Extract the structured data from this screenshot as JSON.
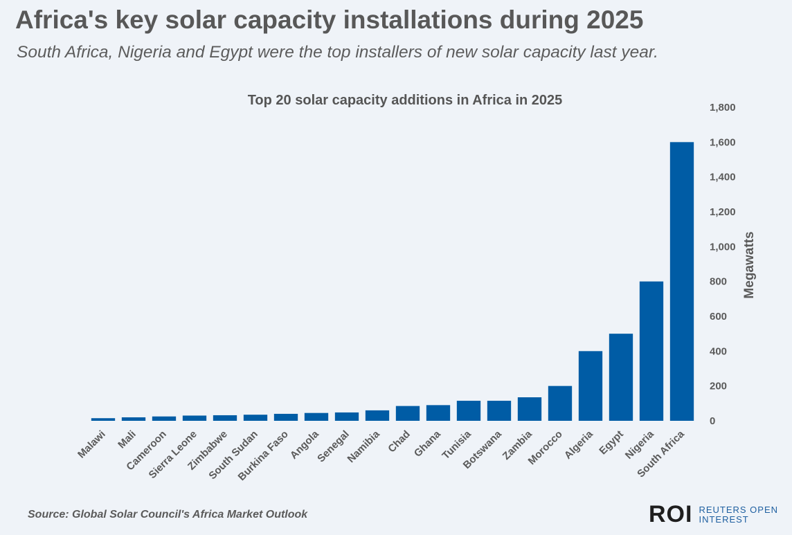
{
  "header": {
    "title": "Africa's key solar capacity installations during 2025",
    "subtitle": "South Africa, Nigeria and Egypt were the top installers of new solar capacity last year."
  },
  "footer": {
    "source": "Source:  Global Solar Council's Africa Market Outlook",
    "brand_mark": "ROI",
    "brand_name": "REUTERS OPEN INTEREST"
  },
  "chart_data": {
    "type": "bar",
    "title": "Top 20 solar capacity additions in Africa in 2025",
    "xlabel": "",
    "ylabel": "Megawatts",
    "ylim": [
      0,
      1800
    ],
    "yticks": [
      0,
      200,
      400,
      600,
      800,
      1000,
      1200,
      1400,
      1600,
      1800
    ],
    "ytick_labels": [
      "0",
      "200",
      "400",
      "600",
      "800",
      "1,000",
      "1,200",
      "1,400",
      "1,600",
      "1,800"
    ],
    "y_axis_position": "right",
    "grid": false,
    "legend": "none",
    "bar_color": "#005ca5",
    "categories": [
      "Malawi",
      "Mali",
      "Cameroon",
      "Sierra Leone",
      "Zimbabwe",
      "South Sudan",
      "Burkina Faso",
      "Angola",
      "Senegal",
      "Namibia",
      "Chad",
      "Ghana",
      "Tunisia",
      "Botswana",
      "Zambia",
      "Morocco",
      "Algeria",
      "Egypt",
      "Nigeria",
      "South Africa"
    ],
    "values": [
      15,
      20,
      25,
      30,
      32,
      35,
      40,
      45,
      48,
      60,
      85,
      90,
      115,
      115,
      135,
      200,
      400,
      500,
      800,
      1600
    ]
  }
}
